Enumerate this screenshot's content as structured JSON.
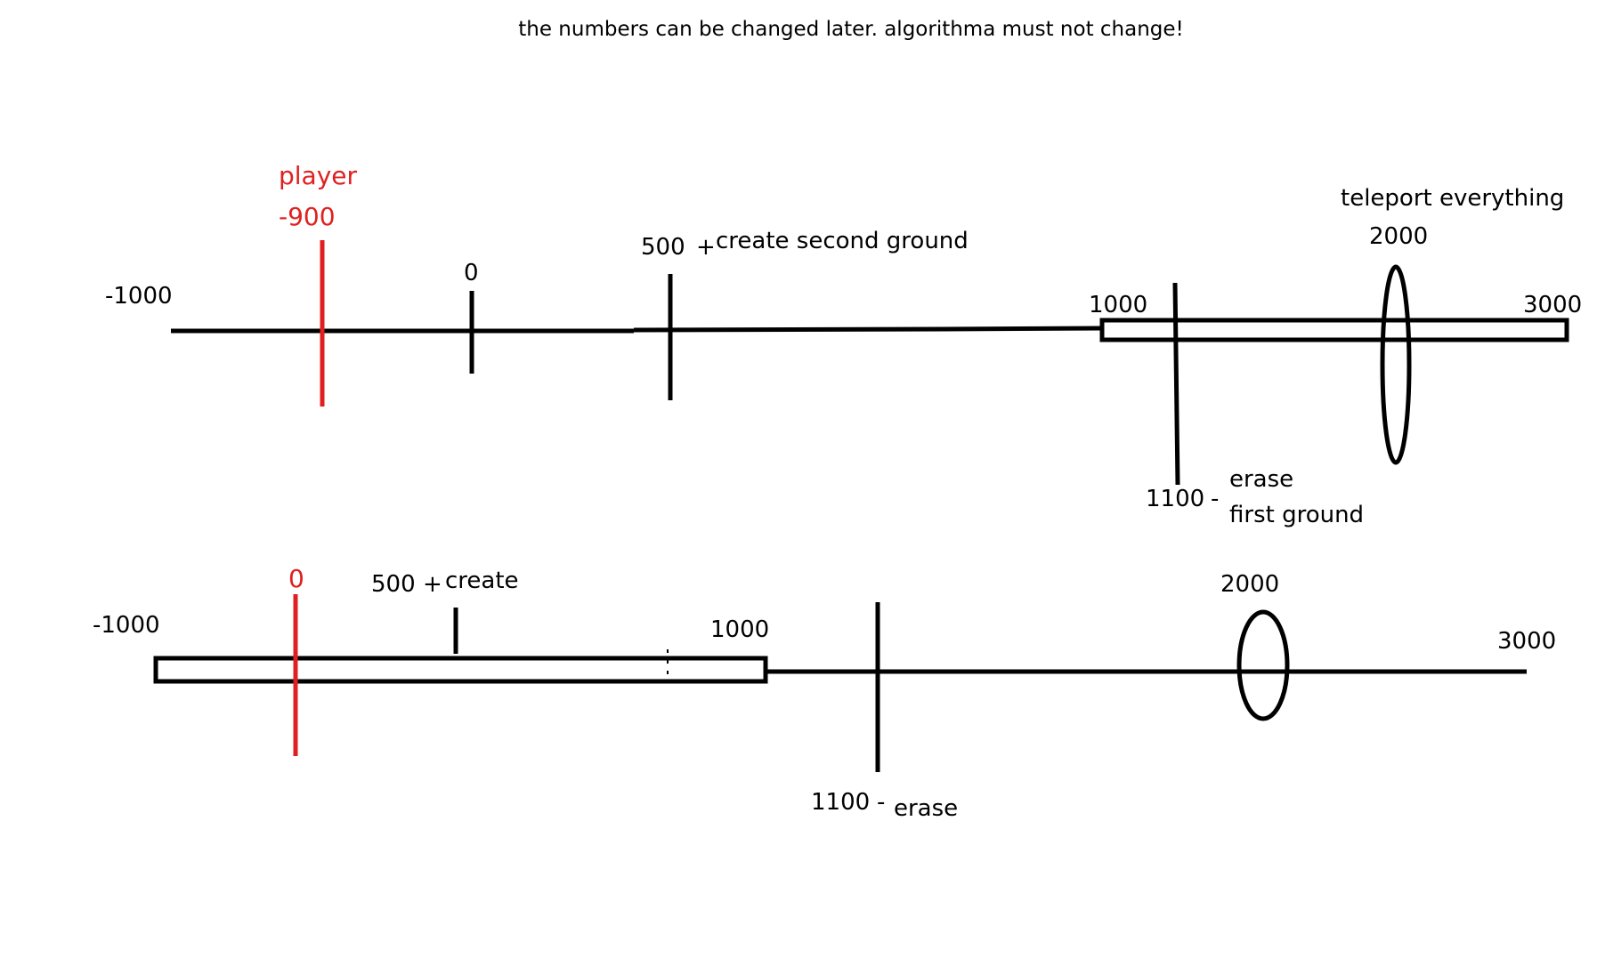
{
  "note": "the numbers can be changed later. algorithma must not change!",
  "colors": {
    "ink": "#000000",
    "player": "#e02020",
    "background": "#ffffff"
  },
  "top_diagram": {
    "player_label": "player",
    "player_value": "-900",
    "start_label": "-1000",
    "zero_label": "0",
    "create_value": "500",
    "create_sign": "+",
    "create_text": "create second ground",
    "ground_start_label": "1000",
    "end_label": "3000",
    "teleport_text": "teleport everything",
    "teleport_value": "2000",
    "erase_value": "1100",
    "erase_sign": "-",
    "erase_text_line1": "erase",
    "erase_text_line2": "first ground"
  },
  "bottom_diagram": {
    "start_label": "-1000",
    "player_value": "0",
    "create_value": "500",
    "create_sign": "+",
    "create_text": "create",
    "ground_end_label": "1000",
    "teleport_value": "2000",
    "end_label": "3000",
    "erase_value": "1100",
    "erase_sign": "-",
    "erase_text": "erase"
  }
}
